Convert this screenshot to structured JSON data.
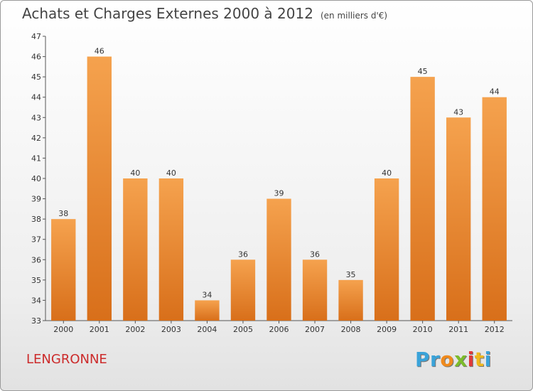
{
  "header": {
    "title": "Achats et Charges Externes 2000 à 2012",
    "subtitle": "(en milliers d'€)"
  },
  "footer": {
    "commune": "LENGRONNE",
    "logo_letters": [
      "P",
      "r",
      "o",
      "x",
      "i",
      "t",
      "i"
    ]
  },
  "colors": {
    "bar_light": "#f5a24e",
    "bar_dark": "#d86f1a",
    "commune": "#cc2b2b",
    "logo": [
      "#3aa3d9",
      "#3aa3d9",
      "#f08a1c",
      "#7cbc2b",
      "#e03a3a",
      "#f0b81c",
      "#3aa3d9"
    ]
  },
  "chart_data": {
    "type": "bar",
    "title": "Achats et Charges Externes 2000 à 2012",
    "subtitle": "(en milliers d'€)",
    "categories": [
      "2000",
      "2001",
      "2002",
      "2003",
      "2004",
      "2005",
      "2006",
      "2007",
      "2008",
      "2009",
      "2010",
      "2011",
      "2012"
    ],
    "values": [
      38,
      46,
      40,
      40,
      34,
      36,
      39,
      36,
      35,
      40,
      45,
      43,
      44
    ],
    "ylim": [
      33,
      47
    ],
    "yticks": [
      33,
      34,
      35,
      36,
      37,
      38,
      39,
      40,
      41,
      42,
      43,
      44,
      45,
      46,
      47
    ],
    "grid": false,
    "data_labels": true
  }
}
